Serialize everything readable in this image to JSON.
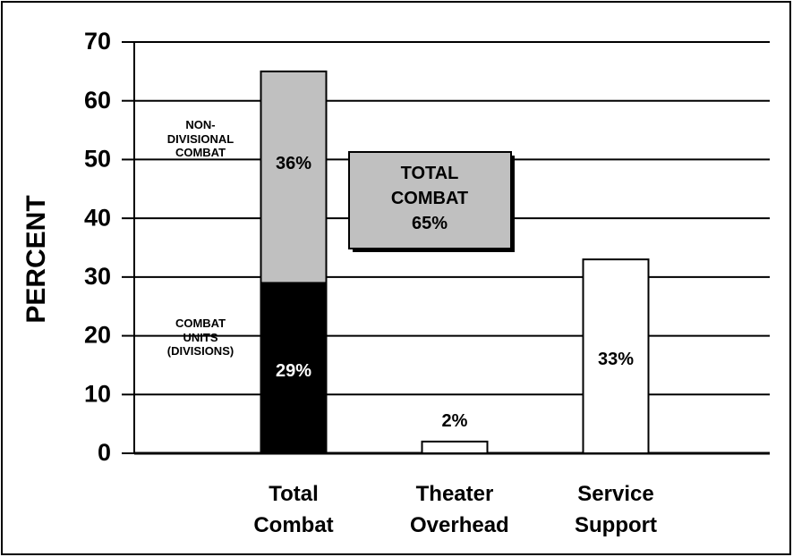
{
  "chart_data": {
    "type": "bar",
    "stacked": true,
    "y_label": "PERCENT",
    "categories": [
      "Total Combat",
      "Theater Overhead",
      "Service Support"
    ],
    "series": [
      {
        "name": "COMBAT UNITS (DIVISIONS)",
        "color": "#000000",
        "values": [
          29,
          null,
          null
        ],
        "value_labels": [
          "29%",
          null,
          null
        ]
      },
      {
        "name": "NON-DIVISIONAL COMBAT",
        "color": "#c0c0c0",
        "values": [
          36,
          null,
          null
        ],
        "value_labels": [
          "36%",
          null,
          null
        ]
      },
      {
        "color": "#ffffff",
        "values": [
          null,
          2,
          33
        ],
        "value_labels": [
          null,
          "2%",
          "33%"
        ]
      }
    ],
    "annotation": {
      "text": "TOTAL COMBAT",
      "value": 65,
      "value_label": "65%"
    },
    "ylim": [
      0,
      70
    ],
    "yticks": [
      0,
      10,
      20,
      30,
      40,
      50,
      60,
      70
    ],
    "grid": true
  }
}
